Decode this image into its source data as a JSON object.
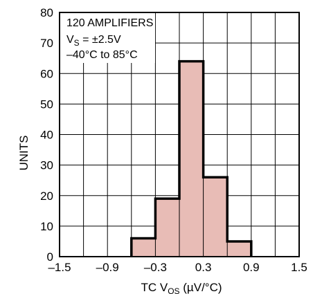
{
  "chart_data": {
    "type": "bar",
    "bin_edges": [
      -0.6,
      -0.3,
      0.0,
      0.3,
      0.6,
      0.9
    ],
    "values": [
      6,
      19,
      64,
      26,
      5
    ],
    "xlim": [
      -1.5,
      1.5
    ],
    "ylim": [
      0,
      80
    ],
    "x_ticks": [
      -1.5,
      -1.2,
      -0.9,
      -0.6,
      -0.3,
      0.0,
      0.3,
      0.6,
      0.9,
      1.2,
      1.5
    ],
    "x_tick_labels": [
      {
        "value": -1.5,
        "label": "–1.5"
      },
      {
        "value": -0.9,
        "label": "–0.9"
      },
      {
        "value": -0.3,
        "label": "–0.3"
      },
      {
        "value": 0.3,
        "label": "0.3"
      },
      {
        "value": 0.9,
        "label": "0.9"
      },
      {
        "value": 1.5,
        "label": "1.5"
      }
    ],
    "y_ticks": [
      0,
      10,
      20,
      30,
      40,
      50,
      60,
      70,
      80
    ],
    "ylabel": "UNITS",
    "xlabel": {
      "main": "TC V",
      "sub": "OS",
      "rest": " (µV/°C)"
    },
    "annotation": {
      "line1": "120 AMPLIFIERS",
      "line2_main": "V",
      "line2_sub": "S",
      "line2_rest": " = ±2.5V",
      "line3": "–40°C to 85°C"
    },
    "bar_color": "#e8bcb6",
    "grid": true
  }
}
